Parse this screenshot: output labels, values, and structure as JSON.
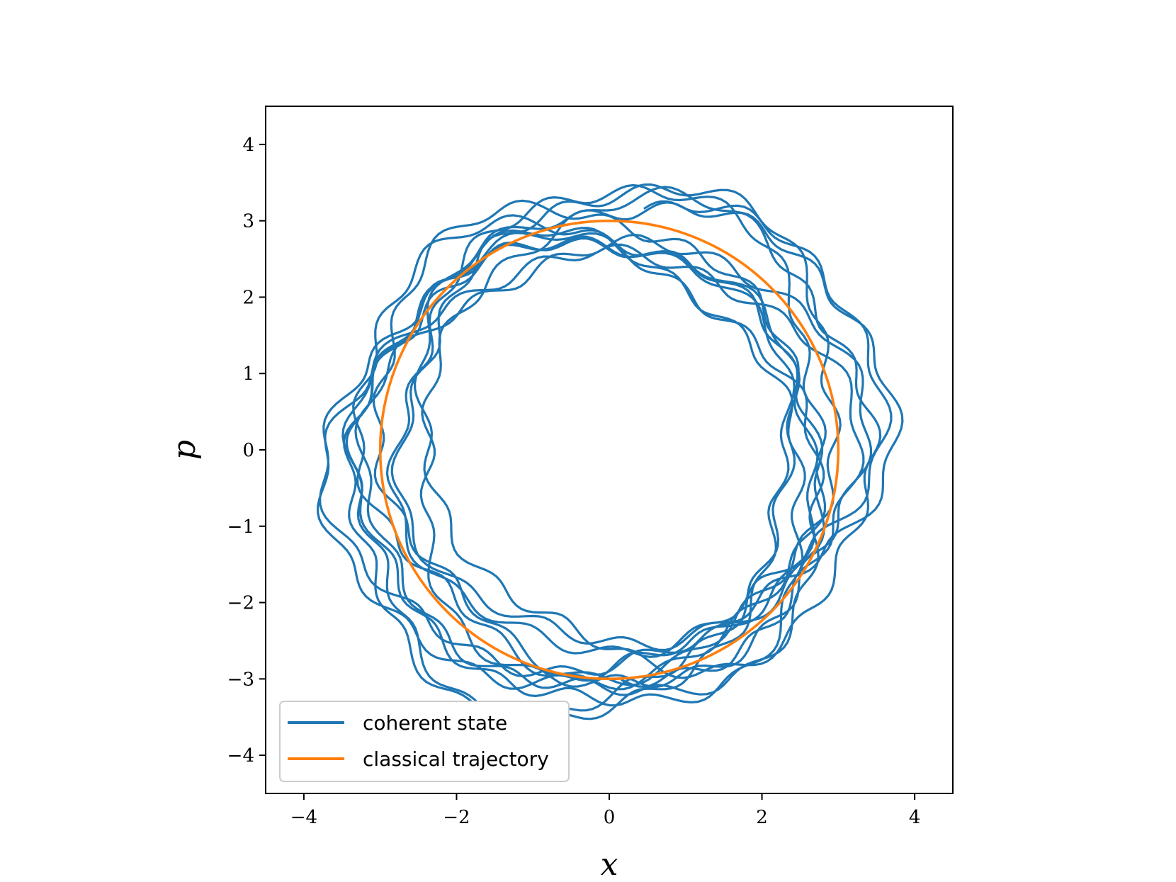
{
  "chart_data": {
    "type": "line",
    "title": "",
    "xlabel": "x",
    "ylabel": "p",
    "xlim": [
      -4.5,
      4.5
    ],
    "ylim": [
      -4.5,
      4.5
    ],
    "xticks": [
      -4,
      -2,
      0,
      2,
      4
    ],
    "yticks": [
      -4,
      -3,
      -2,
      -1,
      0,
      1,
      2,
      3,
      4
    ],
    "xtick_labels": [
      "−4",
      "−2",
      "0",
      "2",
      "4"
    ],
    "ytick_labels": [
      "−4",
      "−3",
      "−2",
      "−1",
      "0",
      "1",
      "2",
      "3",
      "4"
    ],
    "grid": false,
    "legend_position": "lower-left",
    "series": [
      {
        "name": "coherent state",
        "color": "#1f77b4",
        "radius": 3.0,
        "turns": 12.5,
        "start_angle_deg": 90,
        "noise_amplitude": 0.35,
        "precession_amplitude": 0.55
      },
      {
        "name": "classical trajectory",
        "color": "#ff7f0e",
        "radius": 3.0,
        "center": [
          0,
          0
        ]
      }
    ]
  }
}
